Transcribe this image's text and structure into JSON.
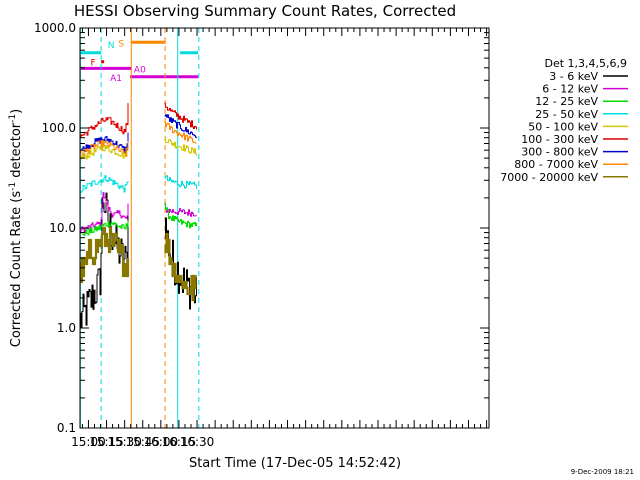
{
  "title": "HESSI Observing Summary Count Rates, Corrected",
  "footer_date": "9-Dec-2009 18:21",
  "chart_data": {
    "type": "line",
    "title": "HESSI Observing Summary Count Rates, Corrected",
    "xlabel": "Start Time (17-Dec-05 14:52:42)",
    "ylabel": "Corrected Count Rate (s⁻¹ detector⁻¹)",
    "ylabel_main": "Corrected Count Rate (s",
    "ylabel_sup1": "-1",
    "ylabel_mid": " detector",
    "ylabel_sup2": "-1",
    "ylabel_end": ")",
    "yscale": "log",
    "xlim_min": [
      893,
      1232
    ],
    "ylim": [
      0.1,
      1000
    ],
    "x_ticks": [
      {
        "t": 900,
        "label": "15:00"
      },
      {
        "t": 915,
        "label": "15:15"
      },
      {
        "t": 930,
        "label": "15:30"
      },
      {
        "t": 945,
        "label": "15:45"
      },
      {
        "t": 960,
        "label": "16:00"
      },
      {
        "t": 975,
        "label": "16:15"
      },
      {
        "t": 990,
        "label": "16:30"
      }
    ],
    "y_ticks": [
      {
        "v": 0.1,
        "label": "0.1"
      },
      {
        "v": 1,
        "label": "1.0"
      },
      {
        "v": 10,
        "label": "10.0"
      },
      {
        "v": 100,
        "label": "100.0"
      },
      {
        "v": 1000,
        "label": "1000.0"
      }
    ],
    "legend_title": "Det 1,3,4,5,6,9",
    "legend_position": "right",
    "series": [
      {
        "name": "3 - 6 keV",
        "color": "#000000",
        "segments": [
          {
            "x": [
              893,
              897,
              900,
              903,
              906,
              909,
              910,
              911.5,
              913,
              916,
              919,
              922,
              925,
              928,
              931,
              932.5,
              933
            ],
            "y": [
              1.2,
              1.4,
              1.7,
              2.0,
              2.4,
              2.8,
              3.5,
              22,
              18,
              12,
              9,
              7,
              6,
              5,
              4.5,
              7,
              20
            ]
          },
          {
            "x": [
              963,
              963.5,
              966,
              969,
              972,
              975,
              978,
              981,
              984,
              987,
              990
            ],
            "y": [
              12,
              11,
              7,
              5,
              4.2,
              3.6,
              3.0,
              2.7,
              2.5,
              2.3,
              2.0
            ]
          }
        ]
      },
      {
        "name": "6 - 12 keV",
        "color": "#d400d4",
        "segments": [
          {
            "x": [
              893,
              897,
              901,
              905,
              909,
              911,
              911.5,
              913,
              916,
              919,
              922,
              925,
              928,
              931,
              932.5,
              933
            ],
            "y": [
              9.5,
              9.8,
              10.2,
              10.6,
              11,
              11.5,
              26,
              20,
              16,
              14,
              13.5,
              14,
              13.5,
              12,
              14,
              20
            ]
          },
          {
            "x": [
              963,
              963.5,
              966,
              969,
              972,
              975,
              978,
              981,
              984,
              987,
              990
            ],
            "y": [
              16,
              15.5,
              15,
              14.8,
              14.6,
              14.5,
              14.4,
              14.3,
              14.2,
              14.1,
              14
            ]
          }
        ]
      },
      {
        "name": "12 - 25 keV",
        "color": "#00dd00",
        "segments": [
          {
            "x": [
              893,
              897,
              901,
              905,
              909,
              912,
              915,
              918,
              921,
              924,
              927,
              930,
              932.5,
              933
            ],
            "y": [
              8.6,
              8.9,
              9.2,
              9.6,
              10,
              10.5,
              11,
              11.3,
              11,
              10.6,
              10.2,
              9.8,
              11,
              14
            ]
          },
          {
            "x": [
              963,
              963.5,
              966,
              969,
              972,
              975,
              978,
              981,
              984,
              987,
              990
            ],
            "y": [
              18,
              16,
              13.5,
              12.5,
              12,
              11.5,
              11.2,
              11,
              10.8,
              10.6,
              10.5
            ]
          }
        ]
      },
      {
        "name": "25 - 50 keV",
        "color": "#00dddd",
        "segments": [
          {
            "x": [
              893,
              897,
              901,
              905,
              909,
              912,
              915,
              918,
              921,
              924,
              927,
              930,
              932.5,
              933
            ],
            "y": [
              24,
              25.5,
              27,
              28.5,
              30,
              31,
              31.5,
              30,
              28.5,
              27,
              25.5,
              24.5,
              28,
              33
            ]
          },
          {
            "x": [
              963,
              963.5,
              966,
              969,
              972,
              975,
              978,
              981,
              984,
              987,
              990
            ],
            "y": [
              33,
              32,
              30,
              29,
              28.5,
              28,
              27.5,
              27,
              26.8,
              26.5,
              26
            ]
          }
        ]
      },
      {
        "name": "50 - 100 keV",
        "color": "#d4c800",
        "segments": [
          {
            "x": [
              893,
              897,
              901,
              905,
              909,
              912,
              915,
              918,
              921,
              924,
              927,
              930,
              932.5,
              933
            ],
            "y": [
              50,
              52,
              55,
              58,
              62,
              64,
              63,
              61,
              59,
              57,
              55,
              52,
              60,
              75
            ]
          },
          {
            "x": [
              963,
              963.5,
              966,
              969,
              972,
              975,
              978,
              981,
              984,
              987,
              990
            ],
            "y": [
              80,
              78,
              74,
              71,
              68,
              66,
              64,
              62,
              60,
              58,
              56
            ]
          }
        ]
      },
      {
        "name": "100 - 300 keV",
        "color": "#dd0000",
        "segments": [
          {
            "x": [
              893,
              897,
              901,
              905,
              909,
              912,
              915,
              918,
              921,
              924,
              927,
              930,
              932.5,
              933
            ],
            "y": [
              82,
              88,
              96,
              104,
              112,
              118,
              120,
              117,
              112,
              105,
              98,
              92,
              120,
              210
            ]
          },
          {
            "x": [
              963,
              963.5,
              966,
              969,
              972,
              975,
              978,
              981,
              984,
              987,
              990
            ],
            "y": [
              180,
              170,
              155,
              145,
              137,
              130,
              123,
              117,
              112,
              107,
              102
            ]
          }
        ]
      },
      {
        "name": "300 - 800 keV",
        "color": "#0000cc",
        "segments": [
          {
            "x": [
              893,
              897,
              901,
              905,
              909,
              912,
              915,
              918,
              921,
              924,
              927,
              930,
              932.5,
              933
            ],
            "y": [
              60,
              63,
              68,
              72,
              75,
              77,
              77,
              75,
              72,
              68,
              64,
              60,
              70,
              100
            ]
          },
          {
            "x": [
              963,
              963.5,
              966,
              969,
              972,
              975,
              978,
              981,
              984,
              987,
              990
            ],
            "y": [
              140,
              135,
              125,
              117,
              110,
              104,
              99,
              94,
              90,
              86,
              82
            ]
          }
        ]
      },
      {
        "name": "800 - 7000 keV",
        "color": "#ff8800",
        "segments": [
          {
            "x": [
              893,
              897,
              901,
              905,
              909,
              912,
              915,
              918,
              921,
              924,
              927,
              930,
              932.5,
              933
            ],
            "y": [
              55,
              58,
              62,
              66,
              69,
              70,
              69,
              67,
              64,
              61,
              58,
              55,
              62,
              85
            ]
          },
          {
            "x": [
              963,
              963.5,
              966,
              969,
              972,
              975,
              978,
              981,
              984,
              987,
              990
            ],
            "y": [
              115,
              110,
              103,
              97,
              92,
              88,
              84,
              80,
              77,
              74,
              71
            ]
          }
        ]
      },
      {
        "name": "7000 - 20000 keV",
        "color": "#887700",
        "segments": [
          {
            "x": [
              893,
              897,
              901,
              905,
              909,
              911,
              912,
              915,
              918,
              921,
              924,
              927,
              930,
              932.5,
              933
            ],
            "y": [
              3.3,
              4.2,
              5.5,
              6.2,
              6.8,
              7.5,
              7.8,
              8.0,
              7.6,
              7.0,
              6.2,
              5.2,
              4.5,
              4.2,
              5.0
            ]
          },
          {
            "x": [
              963,
              963.5,
              966,
              969,
              972,
              975,
              978,
              981,
              984,
              987,
              990
            ],
            "y": [
              8,
              7.5,
              6.0,
              4.5,
              3.8,
              3.2,
              2.9,
              2.6,
              2.5,
              2.4,
              2.3
            ]
          }
        ]
      }
    ],
    "flag_bars": [
      {
        "label": "N",
        "color": "#00dddd",
        "segments": [
          [
            893,
            910.5
          ],
          [
            976,
            991
          ]
        ],
        "level": 565
      },
      {
        "label": "F",
        "color": "#dd0000",
        "segments": [
          [
            910.5,
            913
          ]
        ],
        "level": 460
      },
      {
        "label": "S",
        "color": "#ff8800",
        "segments": [
          [
            935.5,
            964
          ]
        ],
        "level": 720
      },
      {
        "label": "A0",
        "color": "#d400d4",
        "segments": [
          [
            893,
            936
          ]
        ],
        "level": 395
      },
      {
        "label": "A1",
        "color": "#d400d4",
        "segments": [
          [
            934.5,
            991
          ]
        ],
        "level": 325
      }
    ],
    "vertical_markers": [
      {
        "t": 893.3,
        "color": "#00dddd",
        "style": "solid"
      },
      {
        "t": 910.5,
        "color": "#00dddd",
        "style": "dashed"
      },
      {
        "t": 935.5,
        "color": "#ff8800",
        "style": "solid"
      },
      {
        "t": 963.5,
        "color": "#ff8800",
        "style": "dashed"
      },
      {
        "t": 974,
        "color": "#00dddd",
        "style": "solid"
      },
      {
        "t": 991.5,
        "color": "#00dddd",
        "style": "dashed"
      }
    ]
  }
}
